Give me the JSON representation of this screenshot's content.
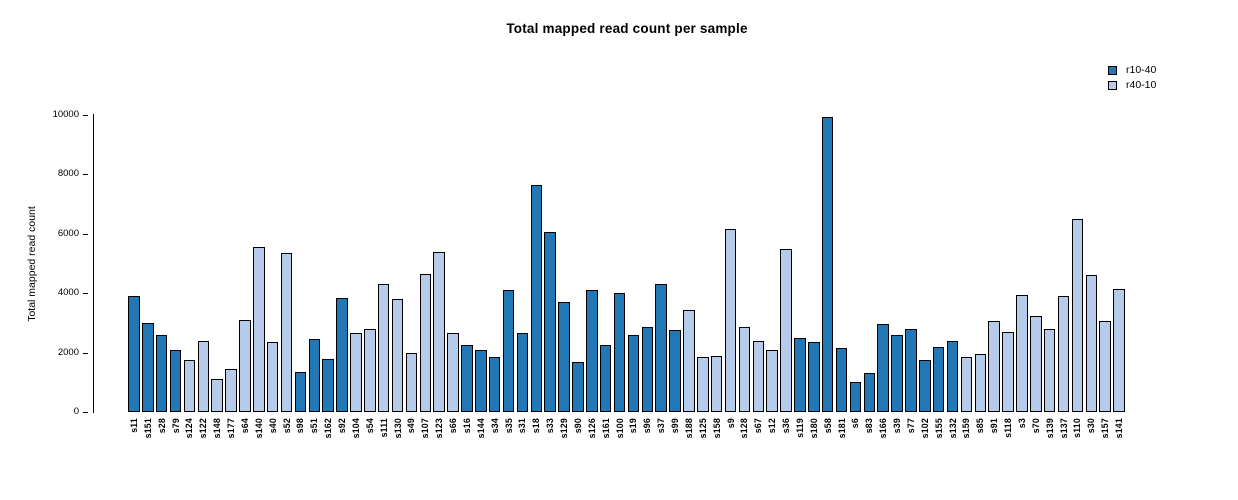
{
  "chart_data": {
    "type": "bar",
    "title": "Total mapped read count per sample",
    "xlabel": "",
    "ylabel": "Total mapped read count",
    "ylim": [
      0,
      10000
    ],
    "yticks": [
      0,
      2000,
      4000,
      6000,
      8000,
      10000
    ],
    "grid": false,
    "legend_position": "top-right",
    "legend": [
      {
        "label": "r10-40",
        "color": "#2277b6"
      },
      {
        "label": "r40-10",
        "color": "#b5cbe9"
      }
    ],
    "bar_border_color": "#000000",
    "samples": [
      {
        "name": "s11",
        "value": 3900,
        "group": "r10-40"
      },
      {
        "name": "s151",
        "value": 3000,
        "group": "r10-40"
      },
      {
        "name": "s28",
        "value": 2600,
        "group": "r10-40"
      },
      {
        "name": "s79",
        "value": 2100,
        "group": "r10-40"
      },
      {
        "name": "s124",
        "value": 1750,
        "group": "r40-10"
      },
      {
        "name": "s122",
        "value": 2400,
        "group": "r40-10"
      },
      {
        "name": "s148",
        "value": 1100,
        "group": "r40-10"
      },
      {
        "name": "s177",
        "value": 1450,
        "group": "r40-10"
      },
      {
        "name": "s64",
        "value": 3100,
        "group": "r40-10"
      },
      {
        "name": "s140",
        "value": 5550,
        "group": "r40-10"
      },
      {
        "name": "s40",
        "value": 2350,
        "group": "r40-10"
      },
      {
        "name": "s52",
        "value": 5350,
        "group": "r40-10"
      },
      {
        "name": "s98",
        "value": 1350,
        "group": "r10-40"
      },
      {
        "name": "s51",
        "value": 2450,
        "group": "r10-40"
      },
      {
        "name": "s162",
        "value": 1800,
        "group": "r10-40"
      },
      {
        "name": "s92",
        "value": 3850,
        "group": "r10-40"
      },
      {
        "name": "s104",
        "value": 2650,
        "group": "r40-10"
      },
      {
        "name": "s54",
        "value": 2800,
        "group": "r40-10"
      },
      {
        "name": "s111",
        "value": 4300,
        "group": "r40-10"
      },
      {
        "name": "s130",
        "value": 3800,
        "group": "r40-10"
      },
      {
        "name": "s49",
        "value": 2000,
        "group": "r40-10"
      },
      {
        "name": "s107",
        "value": 4650,
        "group": "r40-10"
      },
      {
        "name": "s123",
        "value": 5400,
        "group": "r40-10"
      },
      {
        "name": "s66",
        "value": 2650,
        "group": "r40-10"
      },
      {
        "name": "s16",
        "value": 2250,
        "group": "r10-40"
      },
      {
        "name": "s144",
        "value": 2100,
        "group": "r10-40"
      },
      {
        "name": "s34",
        "value": 1850,
        "group": "r10-40"
      },
      {
        "name": "s35",
        "value": 4100,
        "group": "r10-40"
      },
      {
        "name": "s31",
        "value": 2650,
        "group": "r10-40"
      },
      {
        "name": "s18",
        "value": 7650,
        "group": "r10-40"
      },
      {
        "name": "s33",
        "value": 6050,
        "group": "r10-40"
      },
      {
        "name": "s129",
        "value": 3700,
        "group": "r10-40"
      },
      {
        "name": "s90",
        "value": 1700,
        "group": "r10-40"
      },
      {
        "name": "s126",
        "value": 4100,
        "group": "r10-40"
      },
      {
        "name": "s161",
        "value": 2250,
        "group": "r10-40"
      },
      {
        "name": "s100",
        "value": 4000,
        "group": "r10-40"
      },
      {
        "name": "s19",
        "value": 2600,
        "group": "r10-40"
      },
      {
        "name": "s96",
        "value": 2850,
        "group": "r10-40"
      },
      {
        "name": "s37",
        "value": 4300,
        "group": "r10-40"
      },
      {
        "name": "s99",
        "value": 2750,
        "group": "r10-40"
      },
      {
        "name": "s188",
        "value": 3450,
        "group": "r40-10"
      },
      {
        "name": "s125",
        "value": 1850,
        "group": "r40-10"
      },
      {
        "name": "s158",
        "value": 1900,
        "group": "r40-10"
      },
      {
        "name": "s9",
        "value": 6150,
        "group": "r40-10"
      },
      {
        "name": "s128",
        "value": 2850,
        "group": "r40-10"
      },
      {
        "name": "s67",
        "value": 2400,
        "group": "r40-10"
      },
      {
        "name": "s12",
        "value": 2100,
        "group": "r40-10"
      },
      {
        "name": "s36",
        "value": 5500,
        "group": "r40-10"
      },
      {
        "name": "s119",
        "value": 2500,
        "group": "r10-40"
      },
      {
        "name": "s180",
        "value": 2350,
        "group": "r10-40"
      },
      {
        "name": "s58",
        "value": 9950,
        "group": "r10-40"
      },
      {
        "name": "s181",
        "value": 2150,
        "group": "r10-40"
      },
      {
        "name": "s6",
        "value": 1000,
        "group": "r10-40"
      },
      {
        "name": "s83",
        "value": 1300,
        "group": "r10-40"
      },
      {
        "name": "s166",
        "value": 2950,
        "group": "r10-40"
      },
      {
        "name": "s39",
        "value": 2600,
        "group": "r10-40"
      },
      {
        "name": "s77",
        "value": 2800,
        "group": "r10-40"
      },
      {
        "name": "s102",
        "value": 1750,
        "group": "r10-40"
      },
      {
        "name": "s155",
        "value": 2200,
        "group": "r10-40"
      },
      {
        "name": "s132",
        "value": 2400,
        "group": "r10-40"
      },
      {
        "name": "s159",
        "value": 1850,
        "group": "r40-10"
      },
      {
        "name": "s85",
        "value": 1950,
        "group": "r40-10"
      },
      {
        "name": "s91",
        "value": 3050,
        "group": "r40-10"
      },
      {
        "name": "s118",
        "value": 2700,
        "group": "r40-10"
      },
      {
        "name": "s3",
        "value": 3950,
        "group": "r40-10"
      },
      {
        "name": "s70",
        "value": 3250,
        "group": "r40-10"
      },
      {
        "name": "s139",
        "value": 2800,
        "group": "r40-10"
      },
      {
        "name": "s137",
        "value": 3900,
        "group": "r40-10"
      },
      {
        "name": "s110",
        "value": 6500,
        "group": "r40-10"
      },
      {
        "name": "s30",
        "value": 4600,
        "group": "r40-10"
      },
      {
        "name": "s157",
        "value": 3050,
        "group": "r40-10"
      },
      {
        "name": "s141",
        "value": 4150,
        "group": "r40-10"
      }
    ]
  }
}
